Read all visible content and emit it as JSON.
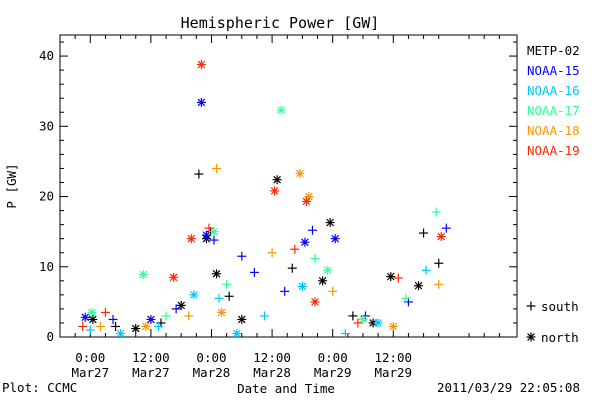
{
  "chart_data": {
    "type": "scatter",
    "title": "Hemispheric Power [GW]",
    "xlabel": "Date and Time",
    "ylabel": "P [GW]",
    "ylim": [
      0,
      43
    ],
    "xlim_hours": [
      -6,
      84.5
    ],
    "y_ticks": [
      0,
      10,
      20,
      30,
      40
    ],
    "x_ticks": [
      {
        "hour": 0,
        "line1": "0:00",
        "line2": "Mar27"
      },
      {
        "hour": 12,
        "line1": "12:00",
        "line2": "Mar27"
      },
      {
        "hour": 24,
        "line1": "0:00",
        "line2": "Mar28"
      },
      {
        "hour": 36,
        "line1": "12:00",
        "line2": "Mar28"
      },
      {
        "hour": 48,
        "line1": "0:00",
        "line2": "Mar29"
      },
      {
        "hour": 60,
        "line1": "12:00",
        "line2": "Mar29"
      }
    ],
    "x_unit_note": "x values are hours after 2011-03-27 00:00",
    "grid": false,
    "legend": "right",
    "marker_key": {
      "south": "+",
      "north": "*"
    },
    "series": [
      {
        "name": "METP-02",
        "color": "#000000",
        "points": [
          {
            "x": 0.5,
            "y": 2.5,
            "m": "*"
          },
          {
            "x": 5,
            "y": 1.5,
            "m": "+"
          },
          {
            "x": 9,
            "y": 1.2,
            "m": "*"
          },
          {
            "x": 14,
            "y": 2.0,
            "m": "+"
          },
          {
            "x": 18,
            "y": 4.5,
            "m": "*"
          },
          {
            "x": 21.5,
            "y": 23.2,
            "m": "+"
          },
          {
            "x": 23,
            "y": 14.0,
            "m": "*"
          },
          {
            "x": 23.8,
            "y": 15.0,
            "m": "+"
          },
          {
            "x": 25,
            "y": 9.0,
            "m": "*"
          },
          {
            "x": 27.5,
            "y": 5.8,
            "m": "+"
          },
          {
            "x": 30,
            "y": 2.5,
            "m": "*"
          },
          {
            "x": 37,
            "y": 22.4,
            "m": "*"
          },
          {
            "x": 40,
            "y": 9.8,
            "m": "+"
          },
          {
            "x": 46,
            "y": 8.0,
            "m": "*"
          },
          {
            "x": 47.5,
            "y": 16.3,
            "m": "*"
          },
          {
            "x": 52,
            "y": 3.0,
            "m": "+"
          },
          {
            "x": 56,
            "y": 2.0,
            "m": "*"
          },
          {
            "x": 59.5,
            "y": 8.6,
            "m": "*"
          },
          {
            "x": 65,
            "y": 7.3,
            "m": "*"
          },
          {
            "x": 66,
            "y": 14.8,
            "m": "+"
          },
          {
            "x": 69,
            "y": 10.5,
            "m": "+"
          }
        ]
      },
      {
        "name": "NOAA-15",
        "color": "#0000ff",
        "points": [
          {
            "x": -1,
            "y": 2.8,
            "m": "*"
          },
          {
            "x": 4.5,
            "y": 2.5,
            "m": "+"
          },
          {
            "x": 12,
            "y": 2.5,
            "m": "*"
          },
          {
            "x": 17,
            "y": 4.0,
            "m": "+"
          },
          {
            "x": 22,
            "y": 33.4,
            "m": "*"
          },
          {
            "x": 23,
            "y": 14.5,
            "m": "*"
          },
          {
            "x": 24.5,
            "y": 13.8,
            "m": "+"
          },
          {
            "x": 30,
            "y": 11.5,
            "m": "+"
          },
          {
            "x": 32.5,
            "y": 9.2,
            "m": "+"
          },
          {
            "x": 38.5,
            "y": 6.5,
            "m": "+"
          },
          {
            "x": 42.5,
            "y": 13.5,
            "m": "*"
          },
          {
            "x": 44,
            "y": 15.2,
            "m": "+"
          },
          {
            "x": 48.5,
            "y": 14.0,
            "m": "*"
          },
          {
            "x": 54.5,
            "y": 3.0,
            "m": "+"
          },
          {
            "x": 63,
            "y": 5.0,
            "m": "+"
          },
          {
            "x": 70.5,
            "y": 15.5,
            "m": "+"
          }
        ]
      },
      {
        "name": "NOAA-16",
        "color": "#00c8ff",
        "points": [
          {
            "x": 0,
            "y": 1.0,
            "m": "+"
          },
          {
            "x": 6,
            "y": 0.5,
            "m": "*"
          },
          {
            "x": 13.5,
            "y": 1.5,
            "m": "+"
          },
          {
            "x": 20.5,
            "y": 6.0,
            "m": "*"
          },
          {
            "x": 25.5,
            "y": 5.5,
            "m": "+"
          },
          {
            "x": 29,
            "y": 0.5,
            "m": "*"
          },
          {
            "x": 34.5,
            "y": 3.0,
            "m": "+"
          },
          {
            "x": 42,
            "y": 7.2,
            "m": "*"
          },
          {
            "x": 50.5,
            "y": 0.5,
            "m": "+"
          },
          {
            "x": 57,
            "y": 2.0,
            "m": "*"
          },
          {
            "x": 66.5,
            "y": 9.5,
            "m": "+"
          }
        ]
      },
      {
        "name": "NOAA-17",
        "color": "#32ff96",
        "points": [
          {
            "x": 0.3,
            "y": 3.5,
            "m": "*"
          },
          {
            "x": 10.5,
            "y": 8.9,
            "m": "*"
          },
          {
            "x": 15,
            "y": 3.0,
            "m": "+"
          },
          {
            "x": 24.5,
            "y": 15.0,
            "m": "*"
          },
          {
            "x": 27,
            "y": 7.5,
            "m": "+"
          },
          {
            "x": 37.8,
            "y": 32.3,
            "m": "*"
          },
          {
            "x": 44.5,
            "y": 11.2,
            "m": "+"
          },
          {
            "x": 47,
            "y": 9.5,
            "m": "*"
          },
          {
            "x": 54,
            "y": 2.5,
            "m": "*"
          },
          {
            "x": 62.5,
            "y": 5.5,
            "m": "+"
          },
          {
            "x": 68.5,
            "y": 17.8,
            "m": "+"
          }
        ]
      },
      {
        "name": "NOAA-18",
        "color": "#ff9600",
        "points": [
          {
            "x": 2,
            "y": 1.5,
            "m": "+"
          },
          {
            "x": 11,
            "y": 1.5,
            "m": "*"
          },
          {
            "x": 19.5,
            "y": 3.0,
            "m": "+"
          },
          {
            "x": 25,
            "y": 24.0,
            "m": "+"
          },
          {
            "x": 26,
            "y": 3.5,
            "m": "*"
          },
          {
            "x": 36,
            "y": 12.0,
            "m": "+"
          },
          {
            "x": 41.5,
            "y": 23.3,
            "m": "*"
          },
          {
            "x": 43.3,
            "y": 20.0,
            "m": "*"
          },
          {
            "x": 48,
            "y": 6.5,
            "m": "+"
          },
          {
            "x": 60,
            "y": 1.5,
            "m": "*"
          },
          {
            "x": 69,
            "y": 7.5,
            "m": "+"
          }
        ]
      },
      {
        "name": "NOAA-19",
        "color": "#ff2800",
        "points": [
          {
            "x": -1.5,
            "y": 1.5,
            "m": "+"
          },
          {
            "x": 3,
            "y": 3.5,
            "m": "+"
          },
          {
            "x": 16.5,
            "y": 8.5,
            "m": "*"
          },
          {
            "x": 20,
            "y": 14.0,
            "m": "*"
          },
          {
            "x": 22,
            "y": 38.8,
            "m": "*"
          },
          {
            "x": 23.5,
            "y": 15.5,
            "m": "+"
          },
          {
            "x": 36.5,
            "y": 20.8,
            "m": "*"
          },
          {
            "x": 40.5,
            "y": 12.5,
            "m": "+"
          },
          {
            "x": 42.8,
            "y": 19.3,
            "m": "*"
          },
          {
            "x": 44.5,
            "y": 5.0,
            "m": "*"
          },
          {
            "x": 53,
            "y": 2.0,
            "m": "+"
          },
          {
            "x": 61,
            "y": 8.4,
            "m": "+"
          },
          {
            "x": 69.5,
            "y": 14.3,
            "m": "*"
          }
        ]
      }
    ]
  },
  "footer": {
    "plot_by": "Plot: CCMC",
    "timestamp": "2011/03/29 22:05:08"
  }
}
